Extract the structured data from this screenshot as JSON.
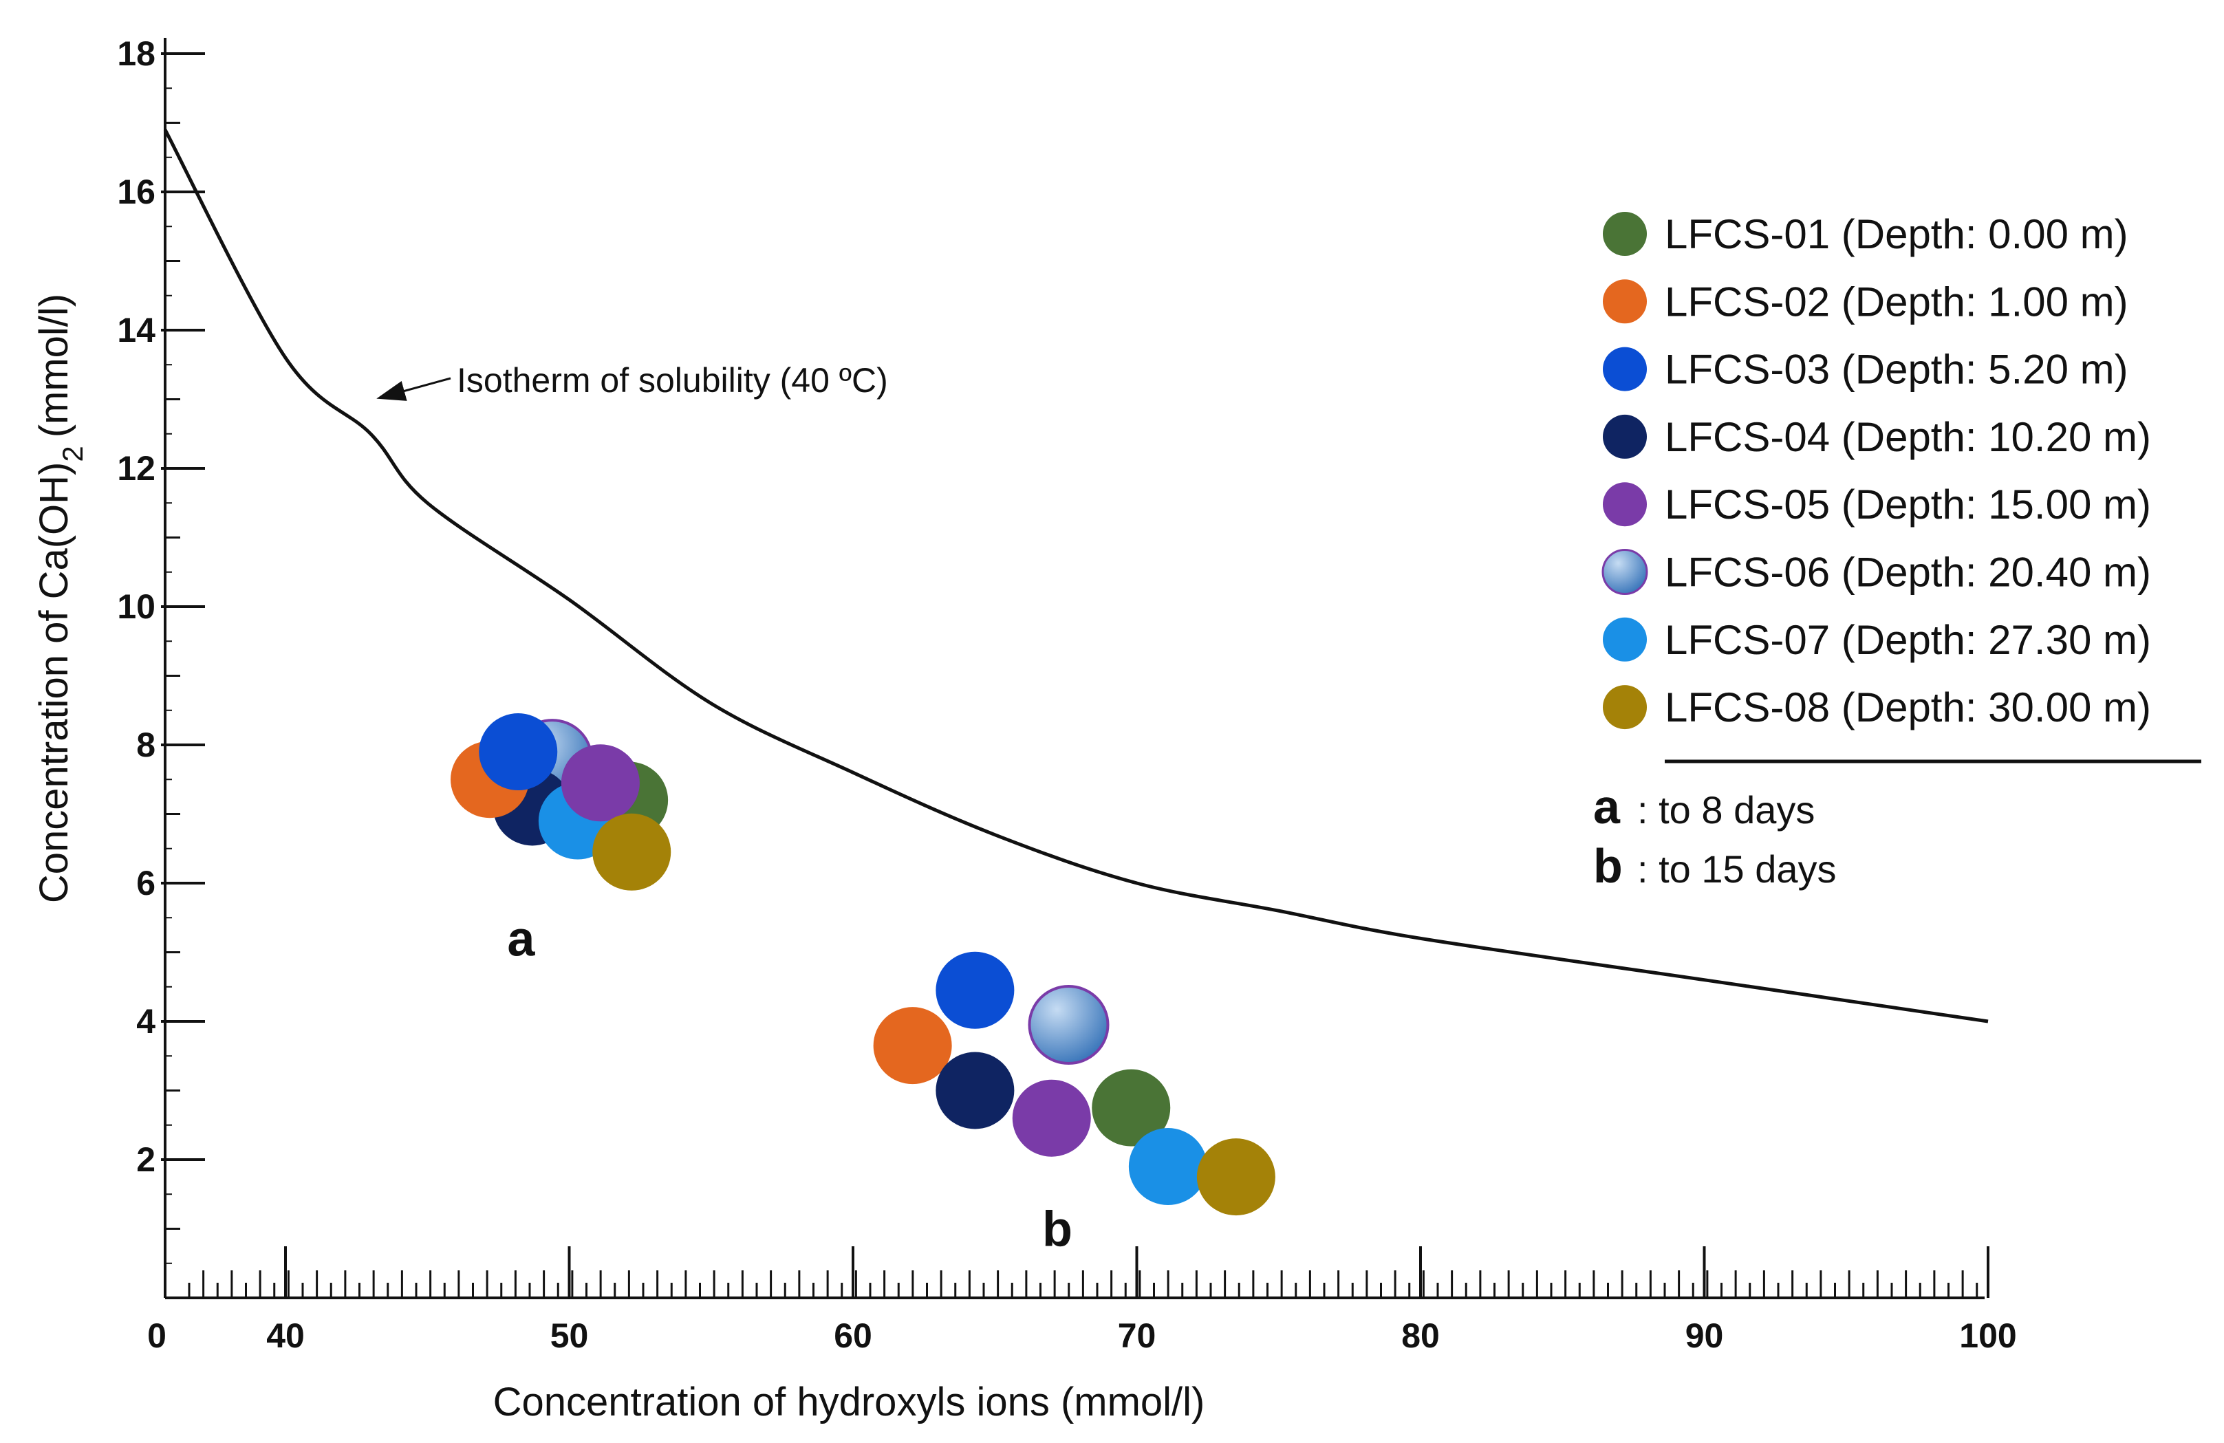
{
  "chart_data": {
    "type": "scatter",
    "title": "",
    "xlabel": "Concentration of hydroxyls ions (mmol/l)",
    "ylabel": "Concentration of Ca(OH)",
    "ylabel_subscript": "2",
    "ylabel_unit": "(mmol/l)",
    "x_tick_labels": [
      "0",
      "40",
      "50",
      "60",
      "70",
      "80",
      "90",
      "100"
    ],
    "x_tick_values": [
      0,
      40,
      50,
      60,
      70,
      80,
      90,
      100
    ],
    "x_scale_note": "axis break between 0 and 40; 0 and 40 labels adjacent",
    "y_tick_labels": [
      "2",
      "4",
      "6",
      "8",
      "10",
      "12",
      "14",
      "16",
      "18"
    ],
    "y_tick_values": [
      2,
      4,
      6,
      8,
      10,
      12,
      14,
      16,
      18
    ],
    "ylim": [
      0,
      18
    ],
    "curve": {
      "name": "Isotherm of solubility",
      "annotation": "Isotherm of solubility (40 ºC)",
      "points": [
        [
          0,
          16.9
        ],
        [
          40,
          13.6
        ],
        [
          43,
          12.5
        ],
        [
          45,
          11.5
        ],
        [
          50,
          10.1
        ],
        [
          55,
          8.6
        ],
        [
          60,
          7.6
        ],
        [
          65,
          6.7
        ],
        [
          70,
          6.0
        ],
        [
          75,
          5.6
        ],
        [
          80,
          5.2
        ],
        [
          90,
          4.6
        ],
        [
          100,
          4.0
        ]
      ]
    },
    "series": [
      {
        "name": "LFCS-01 (Depth: 0.00 m)",
        "color": "#4a7436",
        "values": [
          [
            52.1,
            7.2
          ],
          [
            69.8,
            2.75
          ]
        ]
      },
      {
        "name": "LFCS-02 (Depth: 1.00 m)",
        "color": "#e4671f",
        "values": [
          [
            47.2,
            7.5
          ],
          [
            62.1,
            3.65
          ]
        ]
      },
      {
        "name": "LFCS-03 (Depth: 5.20 m)",
        "color": "#0b4ed4",
        "values": [
          [
            48.2,
            7.9
          ],
          [
            64.3,
            4.45
          ]
        ]
      },
      {
        "name": "LFCS-04 (Depth: 10.20 m)",
        "color": "#0f2462",
        "values": [
          [
            48.7,
            7.1
          ],
          [
            64.3,
            3.0
          ]
        ]
      },
      {
        "name": "LFCS-05 (Depth: 15.00 m)",
        "color": "#7a3ba8",
        "values": [
          [
            51.1,
            7.45
          ],
          [
            67.0,
            2.6
          ]
        ]
      },
      {
        "name": "LFCS-06 (Depth: 20.40 m)",
        "color": "#5c92cc",
        "values": [
          [
            49.4,
            7.8
          ],
          [
            67.6,
            3.95
          ]
        ]
      },
      {
        "name": "LFCS-07 (Depth: 27.30 m)",
        "color": "#1a90e6",
        "values": [
          [
            50.3,
            6.9
          ],
          [
            71.1,
            1.9
          ]
        ]
      },
      {
        "name": "LFCS-08 (Depth: 30.00 m)",
        "color": "#a48208",
        "values": [
          [
            52.2,
            6.45
          ],
          [
            73.5,
            1.75
          ]
        ]
      }
    ],
    "group_labels": [
      {
        "label": "a",
        "x": 48.3,
        "y": 5.2
      },
      {
        "label": "b",
        "x": 67.2,
        "y": 1.0
      }
    ],
    "legend_position": "right",
    "notes": [
      {
        "key": "a",
        "text": ": to 8 days"
      },
      {
        "key": "b",
        "text": ": to 15 days"
      }
    ]
  }
}
